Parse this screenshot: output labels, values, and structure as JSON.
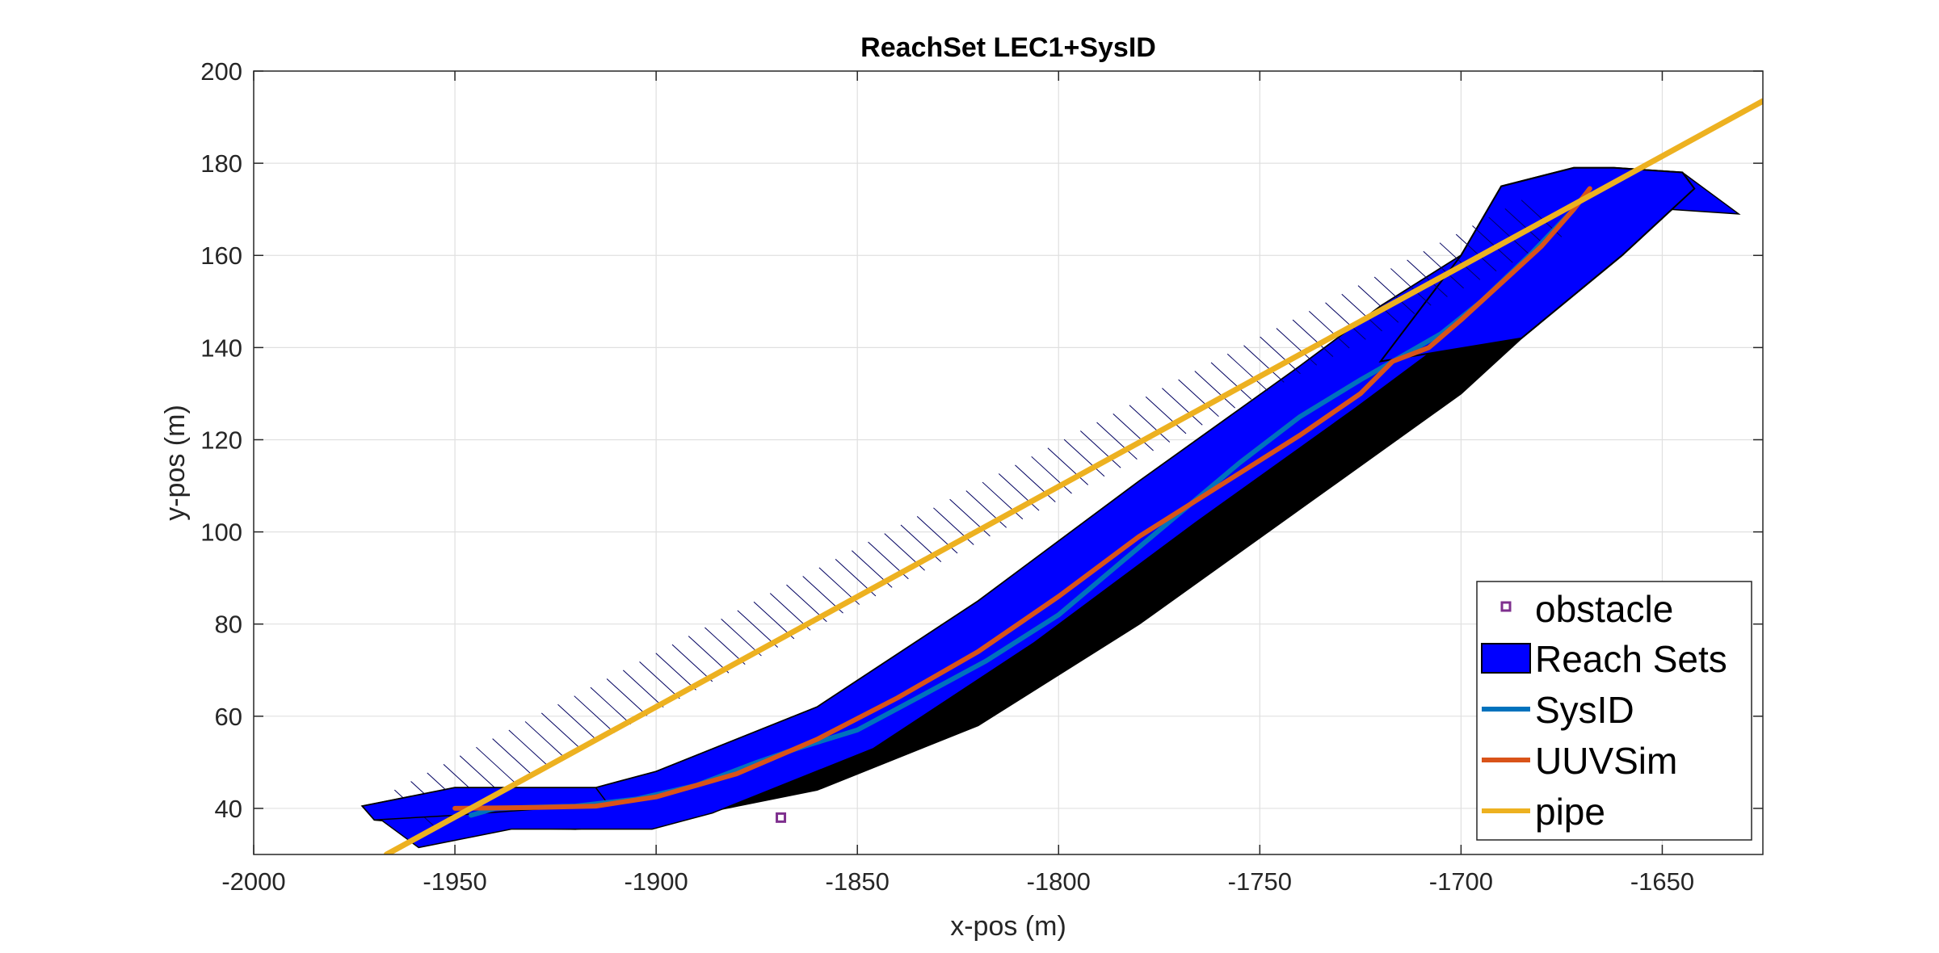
{
  "chart_data": {
    "type": "line",
    "title": "ReachSet LEC1+SysID",
    "xlabel": "x-pos (m)",
    "ylabel": "y-pos (m)",
    "xlim": [
      -2000,
      -1625
    ],
    "ylim": [
      30,
      200
    ],
    "xticks": [
      -2000,
      -1950,
      -1900,
      -1850,
      -1800,
      -1750,
      -1700,
      -1650
    ],
    "yticks": [
      40,
      60,
      80,
      100,
      120,
      140,
      160,
      180,
      200
    ],
    "xtick_labels": [
      "-2000",
      "-1950",
      "-1900",
      "-1850",
      "-1800",
      "-1750",
      "-1700",
      "-1650"
    ],
    "ytick_labels": [
      "40",
      "60",
      "80",
      "100",
      "120",
      "140",
      "160",
      "180",
      "200"
    ],
    "grid": true,
    "legend_position": "bottom-right",
    "reach_sets": {
      "name": "Reach Sets",
      "fill": "#0000ff",
      "shadow": "#000000",
      "outline": [
        [
          -1973,
          40.5
        ],
        [
          -1950,
          44.5
        ],
        [
          -1915,
          44.5
        ],
        [
          -1900,
          48
        ],
        [
          -1860,
          62
        ],
        [
          -1820,
          85
        ],
        [
          -1780,
          111
        ],
        [
          -1740,
          136
        ],
        [
          -1720,
          149
        ],
        [
          -1700,
          160
        ],
        [
          -1690,
          175
        ],
        [
          -1672,
          179
        ],
        [
          -1662,
          179
        ],
        [
          -1645,
          178
        ],
        [
          -1642,
          174.5
        ],
        [
          -1660,
          160
        ],
        [
          -1685,
          142
        ],
        [
          -1700,
          130
        ],
        [
          -1740,
          105
        ],
        [
          -1780,
          80
        ],
        [
          -1820,
          58
        ],
        [
          -1860,
          44
        ],
        [
          -1900,
          37
        ],
        [
          -1920,
          35.5
        ],
        [
          -1950,
          36
        ],
        [
          -1970,
          37.5
        ]
      ]
    },
    "series": [
      {
        "name": "SysID",
        "color": "#0072bd",
        "points": [
          [
            -1946,
            38.5
          ],
          [
            -1940,
            40
          ],
          [
            -1920,
            40.5
          ],
          [
            -1905,
            42
          ],
          [
            -1890,
            45
          ],
          [
            -1875,
            50
          ],
          [
            -1865,
            53
          ],
          [
            -1850,
            57
          ],
          [
            -1835,
            64
          ],
          [
            -1818,
            72
          ],
          [
            -1800,
            82
          ],
          [
            -1785,
            93
          ],
          [
            -1770,
            104
          ],
          [
            -1755,
            115
          ],
          [
            -1740,
            125
          ],
          [
            -1725,
            133
          ],
          [
            -1715,
            138
          ],
          [
            -1705,
            143
          ],
          [
            -1695,
            150
          ],
          [
            -1683,
            160
          ],
          [
            -1672,
            170
          ]
        ]
      },
      {
        "name": "UUVSim",
        "color": "#d95319",
        "points": [
          [
            -1950,
            40
          ],
          [
            -1930,
            40.2
          ],
          [
            -1915,
            40.5
          ],
          [
            -1900,
            42.5
          ],
          [
            -1880,
            47.5
          ],
          [
            -1860,
            55
          ],
          [
            -1840,
            64
          ],
          [
            -1820,
            74
          ],
          [
            -1800,
            86
          ],
          [
            -1780,
            99
          ],
          [
            -1760,
            110
          ],
          [
            -1740,
            121
          ],
          [
            -1725,
            130
          ],
          [
            -1717,
            137
          ],
          [
            -1708,
            140
          ],
          [
            -1700,
            146
          ],
          [
            -1690,
            154
          ],
          [
            -1680,
            162
          ],
          [
            -1672,
            170
          ],
          [
            -1668,
            174.5
          ]
        ]
      },
      {
        "name": "pipe",
        "color": "#edb120",
        "points": [
          [
            -1967,
            30
          ],
          [
            -1625,
            193.5
          ]
        ]
      }
    ],
    "obstacle": {
      "name": "obstacle",
      "color": "#7e2f8e",
      "points": [
        [
          -1869,
          38
        ]
      ]
    }
  }
}
